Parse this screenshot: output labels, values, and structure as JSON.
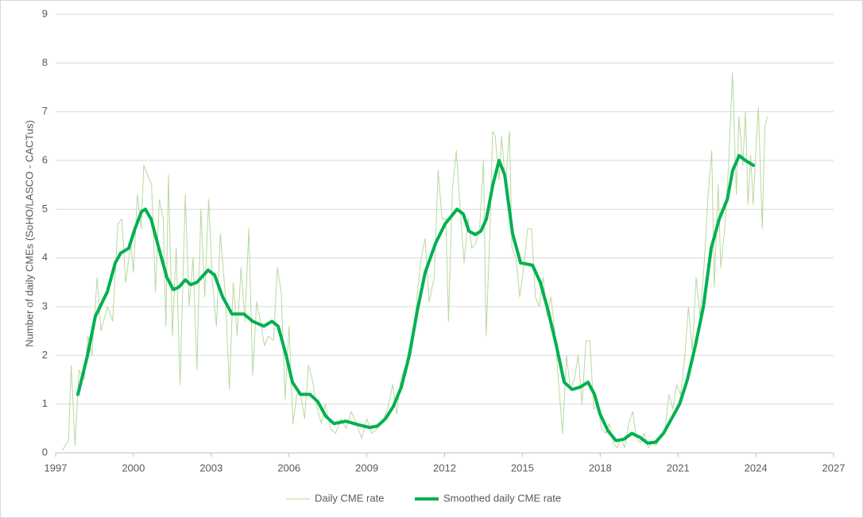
{
  "chart_data": {
    "type": "line",
    "ylabel": "Number of daily CMEs (SoHO/LASCO - CACTus)",
    "xlim": [
      1997,
      2027
    ],
    "xticks": [
      1997,
      2000,
      2003,
      2006,
      2009,
      2012,
      2015,
      2018,
      2021,
      2024,
      2027
    ],
    "ylim": [
      0,
      9
    ],
    "yticks": [
      0,
      1,
      2,
      3,
      4,
      5,
      6,
      7,
      8,
      9
    ],
    "grid": true,
    "legend": "bottom",
    "series": [
      {
        "name": "Daily CME rate",
        "color": "#b7d99e",
        "width": 1,
        "x": [
          1997.25,
          1997.5,
          1997.6,
          1997.75,
          1997.9,
          1998.1,
          1998.25,
          1998.4,
          1998.6,
          1998.75,
          1999.0,
          1999.2,
          1999.4,
          1999.55,
          1999.7,
          1999.9,
          2000.0,
          2000.15,
          2000.3,
          2000.4,
          2000.55,
          2000.7,
          2000.85,
          2001.0,
          2001.15,
          2001.25,
          2001.35,
          2001.5,
          2001.65,
          2001.8,
          2002.0,
          2002.15,
          2002.3,
          2002.45,
          2002.6,
          2002.75,
          2002.9,
          2003.05,
          2003.2,
          2003.35,
          2003.55,
          2003.7,
          2003.85,
          2004.0,
          2004.15,
          2004.3,
          2004.45,
          2004.6,
          2004.75,
          2004.9,
          2005.05,
          2005.2,
          2005.4,
          2005.55,
          2005.7,
          2005.85,
          2006.0,
          2006.15,
          2006.3,
          2006.45,
          2006.6,
          2006.75,
          2006.9,
          2007.05,
          2007.25,
          2007.4,
          2007.6,
          2007.8,
          2008.0,
          2008.2,
          2008.4,
          2008.6,
          2008.8,
          2009.0,
          2009.2,
          2009.4,
          2009.6,
          2009.8,
          2010.0,
          2010.15,
          2010.3,
          2010.5,
          2010.65,
          2010.8,
          2010.95,
          2011.1,
          2011.25,
          2011.4,
          2011.6,
          2011.75,
          2011.9,
          2012.05,
          2012.15,
          2012.3,
          2012.45,
          2012.6,
          2012.75,
          2012.9,
          2013.05,
          2013.2,
          2013.35,
          2013.5,
          2013.6,
          2013.75,
          2013.85,
          2013.95,
          2014.1,
          2014.2,
          2014.35,
          2014.5,
          2014.6,
          2014.75,
          2014.9,
          2015.05,
          2015.2,
          2015.35,
          2015.5,
          2015.65,
          2015.8,
          2015.95,
          2016.1,
          2016.25,
          2016.4,
          2016.55,
          2016.7,
          2016.85,
          2017.0,
          2017.15,
          2017.3,
          2017.45,
          2017.6,
          2017.75,
          2017.9,
          2018.05,
          2018.2,
          2018.35,
          2018.5,
          2018.65,
          2018.8,
          2018.95,
          2019.1,
          2019.25,
          2019.4,
          2019.55,
          2019.7,
          2019.85,
          2020.0,
          2020.15,
          2020.3,
          2020.5,
          2020.65,
          2020.8,
          2020.95,
          2021.1,
          2021.25,
          2021.4,
          2021.55,
          2021.7,
          2021.85,
          2022.0,
          2022.15,
          2022.3,
          2022.4,
          2022.55,
          2022.65,
          2022.8,
          2022.95,
          2023.1,
          2023.25,
          2023.35,
          2023.5,
          2023.6,
          2023.7,
          2023.8,
          2023.9,
          2024.0,
          2024.1,
          2024.25,
          2024.35,
          2024.45
        ],
        "values": [
          0.05,
          0.25,
          1.8,
          0.15,
          1.7,
          1.5,
          2.4,
          2.0,
          3.6,
          2.5,
          3.0,
          2.7,
          4.7,
          4.8,
          3.5,
          4.3,
          3.7,
          5.3,
          4.6,
          5.9,
          5.7,
          5.5,
          3.3,
          5.2,
          4.8,
          2.6,
          5.7,
          2.4,
          4.2,
          1.4,
          5.3,
          3.0,
          4.0,
          1.7,
          5.0,
          3.2,
          5.2,
          3.5,
          2.6,
          4.5,
          3.2,
          1.3,
          3.5,
          2.4,
          3.8,
          2.7,
          4.6,
          1.6,
          3.1,
          2.7,
          2.2,
          2.4,
          2.3,
          3.8,
          3.3,
          1.1,
          2.6,
          0.6,
          1.2,
          1.2,
          0.7,
          1.8,
          1.5,
          1.0,
          0.6,
          1.0,
          0.5,
          0.4,
          0.7,
          0.5,
          0.85,
          0.6,
          0.3,
          0.7,
          0.4,
          0.5,
          0.65,
          0.9,
          1.4,
          0.8,
          1.5,
          1.8,
          2.2,
          2.4,
          3.3,
          4.0,
          4.4,
          3.1,
          3.6,
          5.8,
          4.8,
          4.8,
          2.7,
          5.4,
          6.2,
          5.0,
          3.9,
          4.8,
          4.2,
          4.3,
          4.6,
          6.0,
          2.4,
          4.6,
          6.6,
          6.5,
          5.6,
          6.5,
          5.5,
          6.6,
          4.2,
          4.0,
          3.2,
          3.8,
          4.6,
          4.6,
          3.2,
          3.0,
          3.6,
          2.8,
          3.2,
          2.5,
          1.4,
          0.4,
          2.0,
          1.3,
          1.5,
          2.0,
          1.0,
          2.3,
          2.3,
          0.9,
          1.0,
          0.5,
          0.4,
          0.6,
          0.2,
          0.1,
          0.3,
          0.1,
          0.6,
          0.85,
          0.3,
          0.2,
          0.4,
          0.1,
          0.2,
          0.15,
          0.3,
          0.5,
          1.2,
          0.9,
          1.4,
          1.2,
          1.9,
          3.0,
          2.1,
          3.6,
          2.8,
          3.8,
          5.2,
          6.2,
          3.4,
          5.5,
          3.8,
          4.6,
          5.9,
          7.8,
          5.3,
          6.9,
          5.9,
          7.0,
          5.1,
          6.1,
          5.1,
          6.2,
          7.1,
          4.6,
          6.7,
          6.9
        ]
      },
      {
        "name": "Smoothed daily CME rate",
        "color": "#00b050",
        "width": 4,
        "x": [
          1997.86,
          1998.23,
          1998.53,
          1998.99,
          1999.3,
          1999.51,
          1999.82,
          2000.06,
          2000.31,
          2000.46,
          2000.68,
          2000.98,
          2001.29,
          2001.54,
          2001.75,
          2002.0,
          2002.21,
          2002.45,
          2002.88,
          2003.13,
          2003.44,
          2003.8,
          2004.05,
          2004.26,
          2004.6,
          2005.03,
          2005.34,
          2005.58,
          2005.89,
          2006.13,
          2006.44,
          2006.81,
          2007.11,
          2007.42,
          2007.73,
          2008.19,
          2008.65,
          2009.1,
          2009.41,
          2009.72,
          2010.02,
          2010.33,
          2010.64,
          2010.94,
          2011.25,
          2011.65,
          2012.02,
          2012.48,
          2012.72,
          2012.94,
          2013.18,
          2013.4,
          2013.61,
          2013.86,
          2014.1,
          2014.32,
          2014.62,
          2014.93,
          2015.39,
          2015.69,
          2016.0,
          2016.31,
          2016.61,
          2016.92,
          2017.23,
          2017.53,
          2017.78,
          2017.99,
          2018.3,
          2018.61,
          2018.91,
          2019.22,
          2019.53,
          2019.83,
          2020.14,
          2020.44,
          2020.75,
          2021.06,
          2021.36,
          2021.67,
          2021.98,
          2022.28,
          2022.59,
          2022.9,
          2023.11,
          2023.36,
          2023.6,
          2023.91
        ],
        "values": [
          1.2,
          2.0,
          2.8,
          3.3,
          3.9,
          4.1,
          4.2,
          4.6,
          4.95,
          5.0,
          4.8,
          4.2,
          3.6,
          3.35,
          3.4,
          3.55,
          3.45,
          3.5,
          3.75,
          3.65,
          3.2,
          2.85,
          2.85,
          2.85,
          2.7,
          2.6,
          2.7,
          2.6,
          2.0,
          1.45,
          1.2,
          1.2,
          1.05,
          0.75,
          0.6,
          0.65,
          0.58,
          0.52,
          0.55,
          0.7,
          0.95,
          1.35,
          2.0,
          2.9,
          3.7,
          4.3,
          4.7,
          5.0,
          4.9,
          4.55,
          4.48,
          4.55,
          4.8,
          5.5,
          6.0,
          5.7,
          4.5,
          3.9,
          3.85,
          3.5,
          2.9,
          2.2,
          1.45,
          1.3,
          1.35,
          1.45,
          1.2,
          0.8,
          0.45,
          0.25,
          0.28,
          0.4,
          0.32,
          0.2,
          0.22,
          0.4,
          0.7,
          1.0,
          1.5,
          2.2,
          3.0,
          4.2,
          4.8,
          5.2,
          5.8,
          6.1,
          6.0,
          5.9
        ]
      }
    ]
  }
}
